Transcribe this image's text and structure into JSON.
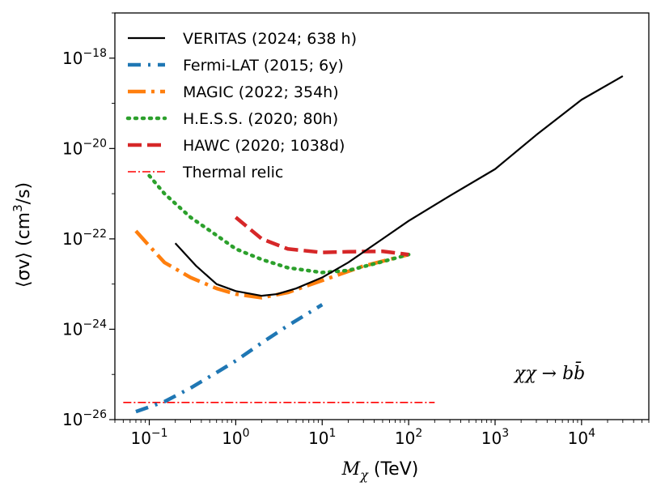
{
  "chart_data": {
    "type": "line",
    "xscale": "log",
    "yscale": "log",
    "xlim": [
      0.04,
      60000
    ],
    "ylim": [
      1e-26,
      1e-17
    ],
    "grid": false,
    "legend_position": "top-left",
    "xlabel": {
      "main": "M",
      "sub": "χ",
      "suffix": " (TeV)"
    },
    "ylabel": {
      "prefix": "⟨σv⟩ (cm",
      "sup": "3",
      "suffix": "/s)"
    },
    "xticks": [
      {
        "value": 0.1,
        "base": "10",
        "exp": "−1"
      },
      {
        "value": 1,
        "base": "10",
        "exp": "0"
      },
      {
        "value": 10,
        "base": "10",
        "exp": "1"
      },
      {
        "value": 100,
        "base": "10",
        "exp": "2"
      },
      {
        "value": 1000,
        "base": "10",
        "exp": "3"
      },
      {
        "value": 10000,
        "base": "10",
        "exp": "4"
      }
    ],
    "yticks": [
      {
        "value": 1e-26,
        "base": "10",
        "exp": "−26"
      },
      {
        "value": 1e-24,
        "base": "10",
        "exp": "−24"
      },
      {
        "value": 1e-22,
        "base": "10",
        "exp": "−22"
      },
      {
        "value": 1e-20,
        "base": "10",
        "exp": "−20"
      },
      {
        "value": 1e-18,
        "base": "10",
        "exp": "−18"
      }
    ],
    "annotation": "χχ → bb̄",
    "series": [
      {
        "name": "VERITAS (2024; 638 h)",
        "color": "#000000",
        "style": "solid",
        "x": [
          0.2,
          0.35,
          0.6,
          1.0,
          2.0,
          3.0,
          5.0,
          10,
          20,
          50,
          100,
          300,
          1000,
          3000,
          10000,
          30000
        ],
        "y": [
          8e-23,
          2.5e-23,
          1e-23,
          7e-24,
          5.5e-24,
          6e-24,
          8e-24,
          1.4e-23,
          3e-23,
          1e-22,
          2.5e-22,
          9e-22,
          3.5e-21,
          2e-20,
          1.2e-19,
          4e-19
        ]
      },
      {
        "name": "Fermi-LAT (2015; 6y)",
        "color": "#1f77b4",
        "style": "dashdot",
        "x": [
          0.07,
          0.15,
          0.3,
          0.6,
          1.0,
          2.0,
          4.0,
          10
        ],
        "y": [
          1.5e-26,
          2.5e-26,
          5e-26,
          1.1e-25,
          2e-25,
          5e-25,
          1.2e-24,
          3.5e-24
        ]
      },
      {
        "name": "MAGIC (2022; 354h)",
        "color": "#ff7f0e",
        "style": "dashdot",
        "x": [
          0.07,
          0.1,
          0.15,
          0.3,
          0.6,
          1.0,
          2.0,
          4.0,
          10,
          30,
          100
        ],
        "y": [
          1.5e-22,
          7e-23,
          3e-23,
          1.4e-23,
          8e-24,
          6e-24,
          5e-24,
          6.5e-24,
          1.2e-23,
          2.5e-23,
          4.5e-23
        ]
      },
      {
        "name": "H.E.S.S. (2020; 80h)",
        "color": "#2ca02c",
        "style": "dotted",
        "x": [
          0.1,
          0.15,
          0.3,
          0.6,
          1.0,
          2.0,
          4.0,
          10,
          20,
          40,
          100
        ],
        "y": [
          2.5e-21,
          1e-21,
          3e-22,
          1.2e-22,
          6e-23,
          3.5e-23,
          2.3e-23,
          1.8e-23,
          2e-23,
          2.8e-23,
          4.5e-23
        ]
      },
      {
        "name": "HAWC (2020; 1038d)",
        "color": "#d62728",
        "style": "dashed",
        "x": [
          1.0,
          2.0,
          4.0,
          10,
          20,
          50,
          100
        ],
        "y": [
          3e-22,
          1e-22,
          6e-23,
          5e-23,
          5.2e-23,
          5.3e-23,
          4.5e-23
        ]
      },
      {
        "name": "Thermal relic",
        "color": "#ff0000",
        "style": "thin-dashdot",
        "x": [
          0.05,
          200
        ],
        "y": [
          2.4e-26,
          2.4e-26
        ]
      }
    ]
  }
}
